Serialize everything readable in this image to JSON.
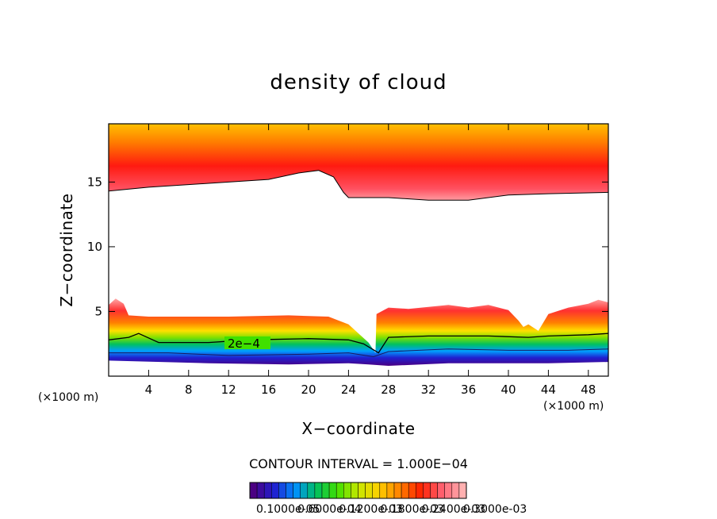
{
  "chart_data": {
    "type": "contour",
    "title": "density of cloud",
    "xlabel": "X−coordinate",
    "ylabel": "Z−coordinate",
    "x_unit": "(×1000 m)",
    "x_ticks": [
      4,
      8,
      12,
      16,
      20,
      24,
      28,
      32,
      36,
      40,
      44,
      48
    ],
    "y_ticks": [
      5,
      10,
      15
    ],
    "xlim": [
      0,
      50
    ],
    "ylim": [
      0,
      19.5
    ],
    "contour_label": "2e−4",
    "contour_interval_text": "CONTOUR INTERVAL = 1.000E−04",
    "colorbar_labels": [
      "0.1000e-05",
      "0.6000e-04",
      "0.1200e-03",
      "0.1800e-03",
      "0.2400e-03",
      "0.3000e-03"
    ],
    "colorbar_min": 1e-06,
    "colorbar_max": 0.0003,
    "colormap": [
      "#4b0082",
      "#2020d0",
      "#0090ff",
      "#00c060",
      "#40e000",
      "#c8e800",
      "#ffd000",
      "#ff8000",
      "#ff2000",
      "#ff6070",
      "#ffb0b0"
    ],
    "upper_layer": {
      "top_z": 19.5,
      "bottom_boundary": [
        [
          0,
          14.3
        ],
        [
          4,
          14.6
        ],
        [
          10,
          14.9
        ],
        [
          16,
          15.2
        ],
        [
          19,
          15.7
        ],
        [
          21,
          15.9
        ],
        [
          22.5,
          15.4
        ],
        [
          23.5,
          14.2
        ],
        [
          24,
          13.8
        ],
        [
          28,
          13.8
        ],
        [
          32,
          13.6
        ],
        [
          36,
          13.6
        ],
        [
          40,
          14.0
        ],
        [
          44,
          14.1
        ],
        [
          50,
          14.2
        ]
      ]
    },
    "lower_layer": {
      "top_boundary": [
        [
          0,
          5.5
        ],
        [
          0.7,
          6.0
        ],
        [
          1.5,
          5.6
        ],
        [
          2,
          4.7
        ],
        [
          4,
          4.6
        ],
        [
          12,
          4.6
        ],
        [
          18,
          4.7
        ],
        [
          22,
          4.6
        ],
        [
          24,
          4.0
        ],
        [
          26,
          2.6
        ],
        [
          26.7,
          1.8
        ],
        [
          26.8,
          4.8
        ],
        [
          28,
          5.3
        ],
        [
          30,
          5.2
        ],
        [
          34,
          5.5
        ],
        [
          36,
          5.3
        ],
        [
          38,
          5.5
        ],
        [
          40,
          5.1
        ],
        [
          41,
          4.3
        ],
        [
          41.5,
          3.8
        ],
        [
          42,
          4.0
        ],
        [
          43,
          3.5
        ],
        [
          44,
          4.8
        ],
        [
          46,
          5.3
        ],
        [
          48,
          5.6
        ],
        [
          49,
          5.9
        ],
        [
          50,
          5.7
        ]
      ],
      "bottom_boundary": [
        [
          0,
          1.2
        ],
        [
          10,
          1.0
        ],
        [
          18,
          0.9
        ],
        [
          24,
          1.0
        ],
        [
          26,
          0.9
        ],
        [
          28,
          0.8
        ],
        [
          34,
          1.0
        ],
        [
          44,
          1.0
        ],
        [
          50,
          1.1
        ]
      ],
      "contour_2e4": [
        [
          0,
          2.8
        ],
        [
          2,
          3.0
        ],
        [
          3,
          3.3
        ],
        [
          5,
          2.6
        ],
        [
          10,
          2.6
        ],
        [
          14,
          2.8
        ],
        [
          20,
          2.9
        ],
        [
          24,
          2.8
        ],
        [
          25.5,
          2.5
        ],
        [
          27,
          1.8
        ],
        [
          28,
          3.0
        ],
        [
          32,
          3.1
        ],
        [
          38,
          3.1
        ],
        [
          42,
          3.0
        ],
        [
          44,
          3.1
        ],
        [
          48,
          3.2
        ],
        [
          50,
          3.3
        ]
      ],
      "contour_1e4": [
        [
          0,
          1.8
        ],
        [
          6,
          1.8
        ],
        [
          12,
          1.6
        ],
        [
          20,
          1.7
        ],
        [
          24,
          1.8
        ],
        [
          26.5,
          1.5
        ],
        [
          28,
          1.9
        ],
        [
          34,
          2.1
        ],
        [
          40,
          2.0
        ],
        [
          46,
          2.0
        ],
        [
          50,
          2.1
        ]
      ]
    }
  }
}
